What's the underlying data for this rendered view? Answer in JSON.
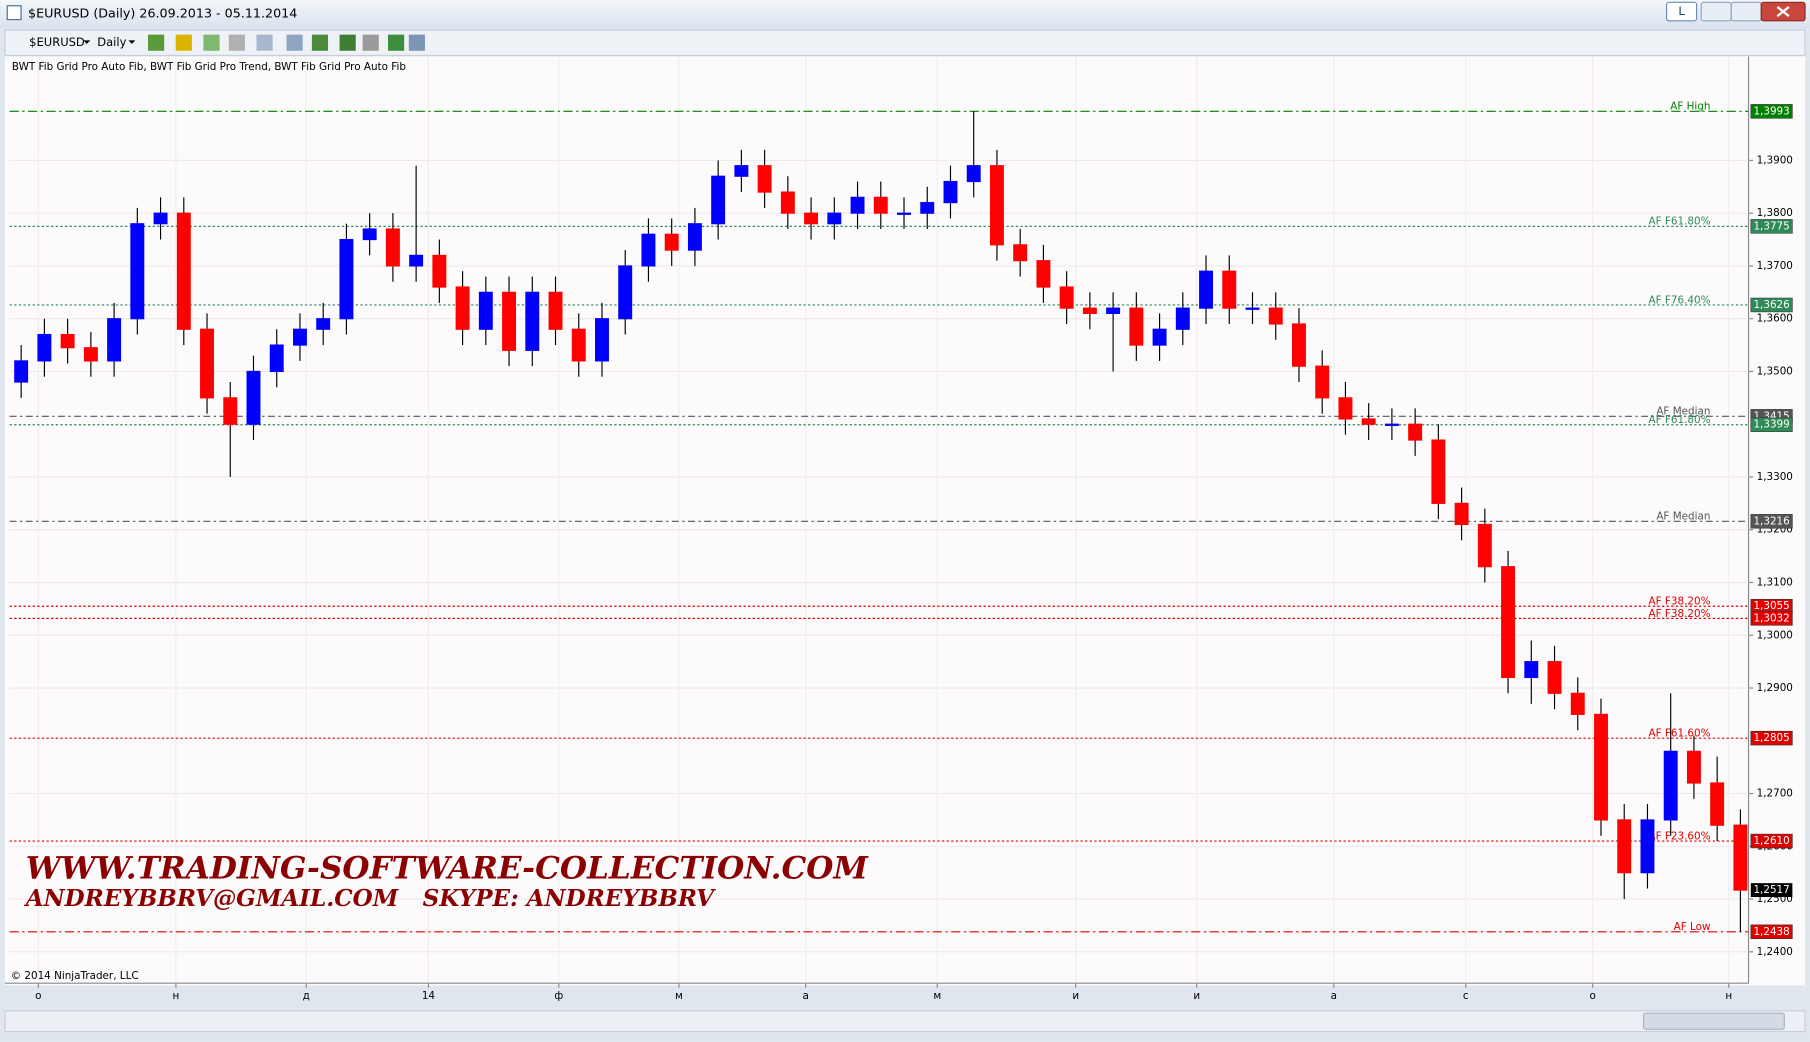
{
  "window": {
    "title": "$EURUSD (Daily)  26.09.2013 - 05.11.2014",
    "button": "L"
  },
  "toolbar": {
    "instrument": "$EURUSD",
    "period": "Daily"
  },
  "indicators": "BWT Fib Grid Pro Auto Fib, BWT Fib Grid Pro Trend, BWT Fib Grid Pro Auto Fib",
  "watermark": {
    "line1": "WWW.TRADING-SOFTWARE-COLLECTION.COM",
    "line2": "ANDREYBBRV@GMAIL.COM",
    "line3": "SKYPE: ANDREYBBRV"
  },
  "copyright": "© 2014 NinjaTrader, LLC",
  "chart_data": {
    "type": "candlestick",
    "up_color": "#0000ff",
    "down_color": "#ff0000",
    "xlim": [
      -0.5,
      74.35
    ],
    "xticks": [
      {
        "value": 0.74,
        "label": "о"
      },
      {
        "value": 6.66,
        "label": "н"
      },
      {
        "value": 12.27,
        "label": "д"
      },
      {
        "value": 17.53,
        "label": "14"
      },
      {
        "value": 23.14,
        "label": "ф"
      },
      {
        "value": 28.31,
        "label": "м"
      },
      {
        "value": 33.77,
        "label": "а"
      },
      {
        "value": 39.43,
        "label": "м"
      },
      {
        "value": 45.39,
        "label": "и"
      },
      {
        "value": 50.6,
        "label": "и"
      },
      {
        "value": 56.5,
        "label": "а"
      },
      {
        "value": 62.18,
        "label": "с"
      },
      {
        "value": 67.64,
        "label": "о"
      },
      {
        "value": 73.5,
        "label": "н"
      }
    ],
    "ylim": [
      1.2345,
      1.404
    ],
    "yticks": [
      {
        "value": 1.39,
        "label": "1,3900"
      },
      {
        "value": 1.38,
        "label": "1,3800"
      },
      {
        "value": 1.37,
        "label": "1,3700"
      },
      {
        "value": 1.36,
        "label": "1,3600"
      },
      {
        "value": 1.35,
        "label": "1,3500"
      },
      {
        "value": 1.33,
        "label": "1,3300"
      },
      {
        "value": 1.32,
        "label": "1,3200"
      },
      {
        "value": 1.31,
        "label": "1,3100"
      },
      {
        "value": 1.3,
        "label": "1,3000"
      },
      {
        "value": 1.29,
        "label": "1,2900"
      },
      {
        "value": 1.27,
        "label": "1,2700"
      },
      {
        "value": 1.26,
        "label": "1,2600"
      },
      {
        "value": 1.25,
        "label": "1,2500"
      },
      {
        "value": 1.24,
        "label": "1,2400"
      }
    ],
    "grid": true,
    "candles": [
      [
        1.348,
        1.355,
        1.345,
        1.352
      ],
      [
        1.352,
        1.36,
        1.349,
        1.357
      ],
      [
        1.357,
        1.36,
        1.3515,
        1.3545
      ],
      [
        1.3545,
        1.3575,
        1.349,
        1.352
      ],
      [
        1.352,
        1.363,
        1.349,
        1.36
      ],
      [
        1.36,
        1.381,
        1.357,
        1.378
      ],
      [
        1.378,
        1.383,
        1.375,
        1.38
      ],
      [
        1.38,
        1.383,
        1.355,
        1.358
      ],
      [
        1.358,
        1.361,
        1.342,
        1.345
      ],
      [
        1.345,
        1.348,
        1.33,
        1.34
      ],
      [
        1.34,
        1.353,
        1.337,
        1.35
      ],
      [
        1.35,
        1.358,
        1.347,
        1.355
      ],
      [
        1.355,
        1.361,
        1.352,
        1.358
      ],
      [
        1.358,
        1.363,
        1.355,
        1.36
      ],
      [
        1.36,
        1.378,
        1.357,
        1.375
      ],
      [
        1.375,
        1.38,
        1.372,
        1.377
      ],
      [
        1.377,
        1.38,
        1.367,
        1.37
      ],
      [
        1.37,
        1.389,
        1.367,
        1.372
      ],
      [
        1.372,
        1.375,
        1.363,
        1.366
      ],
      [
        1.366,
        1.369,
        1.355,
        1.358
      ],
      [
        1.358,
        1.368,
        1.355,
        1.365
      ],
      [
        1.365,
        1.368,
        1.351,
        1.354
      ],
      [
        1.354,
        1.368,
        1.351,
        1.365
      ],
      [
        1.365,
        1.368,
        1.355,
        1.358
      ],
      [
        1.358,
        1.361,
        1.349,
        1.352
      ],
      [
        1.352,
        1.363,
        1.349,
        1.36
      ],
      [
        1.36,
        1.373,
        1.357,
        1.37
      ],
      [
        1.37,
        1.379,
        1.367,
        1.376
      ],
      [
        1.376,
        1.379,
        1.37,
        1.373
      ],
      [
        1.373,
        1.381,
        1.37,
        1.378
      ],
      [
        1.378,
        1.39,
        1.375,
        1.387
      ],
      [
        1.387,
        1.392,
        1.384,
        1.389
      ],
      [
        1.389,
        1.392,
        1.381,
        1.384
      ],
      [
        1.384,
        1.387,
        1.377,
        1.38
      ],
      [
        1.38,
        1.383,
        1.375,
        1.378
      ],
      [
        1.378,
        1.383,
        1.375,
        1.38
      ],
      [
        1.38,
        1.386,
        1.377,
        1.383
      ],
      [
        1.383,
        1.386,
        1.377,
        1.38
      ],
      [
        1.38,
        1.383,
        1.377,
        1.38
      ],
      [
        1.38,
        1.385,
        1.377,
        1.382
      ],
      [
        1.382,
        1.389,
        1.379,
        1.386
      ],
      [
        1.386,
        1.3993,
        1.383,
        1.389
      ],
      [
        1.389,
        1.392,
        1.371,
        1.374
      ],
      [
        1.374,
        1.377,
        1.368,
        1.371
      ],
      [
        1.371,
        1.374,
        1.363,
        1.366
      ],
      [
        1.366,
        1.369,
        1.359,
        1.362
      ],
      [
        1.362,
        1.365,
        1.358,
        1.361
      ],
      [
        1.361,
        1.365,
        1.35,
        1.362
      ],
      [
        1.362,
        1.365,
        1.352,
        1.355
      ],
      [
        1.355,
        1.361,
        1.352,
        1.358
      ],
      [
        1.358,
        1.365,
        1.355,
        1.362
      ],
      [
        1.362,
        1.372,
        1.359,
        1.369
      ],
      [
        1.369,
        1.372,
        1.359,
        1.362
      ],
      [
        1.362,
        1.365,
        1.359,
        1.362
      ],
      [
        1.362,
        1.365,
        1.356,
        1.359
      ],
      [
        1.359,
        1.362,
        1.348,
        1.351
      ],
      [
        1.351,
        1.354,
        1.342,
        1.345
      ],
      [
        1.345,
        1.348,
        1.338,
        1.341
      ],
      [
        1.341,
        1.344,
        1.337,
        1.34
      ],
      [
        1.34,
        1.343,
        1.337,
        1.34
      ],
      [
        1.34,
        1.343,
        1.334,
        1.337
      ],
      [
        1.337,
        1.34,
        1.322,
        1.325
      ],
      [
        1.325,
        1.328,
        1.318,
        1.321
      ],
      [
        1.321,
        1.324,
        1.31,
        1.313
      ],
      [
        1.313,
        1.316,
        1.289,
        1.292
      ],
      [
        1.292,
        1.299,
        1.287,
        1.295
      ],
      [
        1.295,
        1.298,
        1.286,
        1.289
      ],
      [
        1.289,
        1.292,
        1.282,
        1.285
      ],
      [
        1.285,
        1.288,
        1.262,
        1.265
      ],
      [
        1.265,
        1.268,
        1.25,
        1.255
      ],
      [
        1.255,
        1.268,
        1.252,
        1.265
      ],
      [
        1.265,
        1.289,
        1.262,
        1.278
      ],
      [
        1.278,
        1.281,
        1.269,
        1.272
      ],
      [
        1.272,
        1.277,
        1.261,
        1.264
      ],
      [
        1.264,
        1.267,
        1.2438,
        1.2517
      ]
    ],
    "levels": [
      {
        "label": "AF High",
        "value": 1.3993,
        "value_label": "1,3993",
        "color": "#008000",
        "dash": "8 3 2 3"
      },
      {
        "label": "AF F61.80%",
        "value": 1.3775,
        "value_label": "1,3775",
        "color": "#2e8b57",
        "dash": "2 2"
      },
      {
        "label": "AF F76.40%",
        "value": 1.3626,
        "value_label": "1,3626",
        "color": "#2e8b57",
        "dash": "2 2"
      },
      {
        "label": "AF Median",
        "value": 1.3415,
        "value_label": "1,3415",
        "color": "#555555",
        "dash": "6 3 2 3"
      },
      {
        "label": "AF F61.80%",
        "value": 1.3399,
        "value_label": "1,3399",
        "color": "#2e8b57",
        "dash": "2 2"
      },
      {
        "label": "AF Median",
        "value": 1.3216,
        "value_label": "1,3216",
        "color": "#555555",
        "dash": "6 3 2 3"
      },
      {
        "label": "AF F38.20%",
        "value": 1.3055,
        "value_label": "1,3055",
        "color": "#e00000",
        "dash": "2 2"
      },
      {
        "label": "AF F38.20%",
        "value": 1.3032,
        "value_label": "1,3032",
        "color": "#e00000",
        "dash": "2 2"
      },
      {
        "label": "AF F61.60%",
        "value": 1.2805,
        "value_label": "1,2805",
        "color": "#e00000",
        "dash": "2 2"
      },
      {
        "label": "AF F23.60%",
        "value": 1.261,
        "value_label": "1,2610",
        "color": "#e00000",
        "dash": "2 2"
      },
      {
        "label": "AF Low",
        "value": 1.2438,
        "value_label": "1,2438",
        "color": "#e00000",
        "dash": "8 3 2 3"
      }
    ],
    "last_price": {
      "value": 1.2517,
      "label": "1,2517"
    }
  }
}
